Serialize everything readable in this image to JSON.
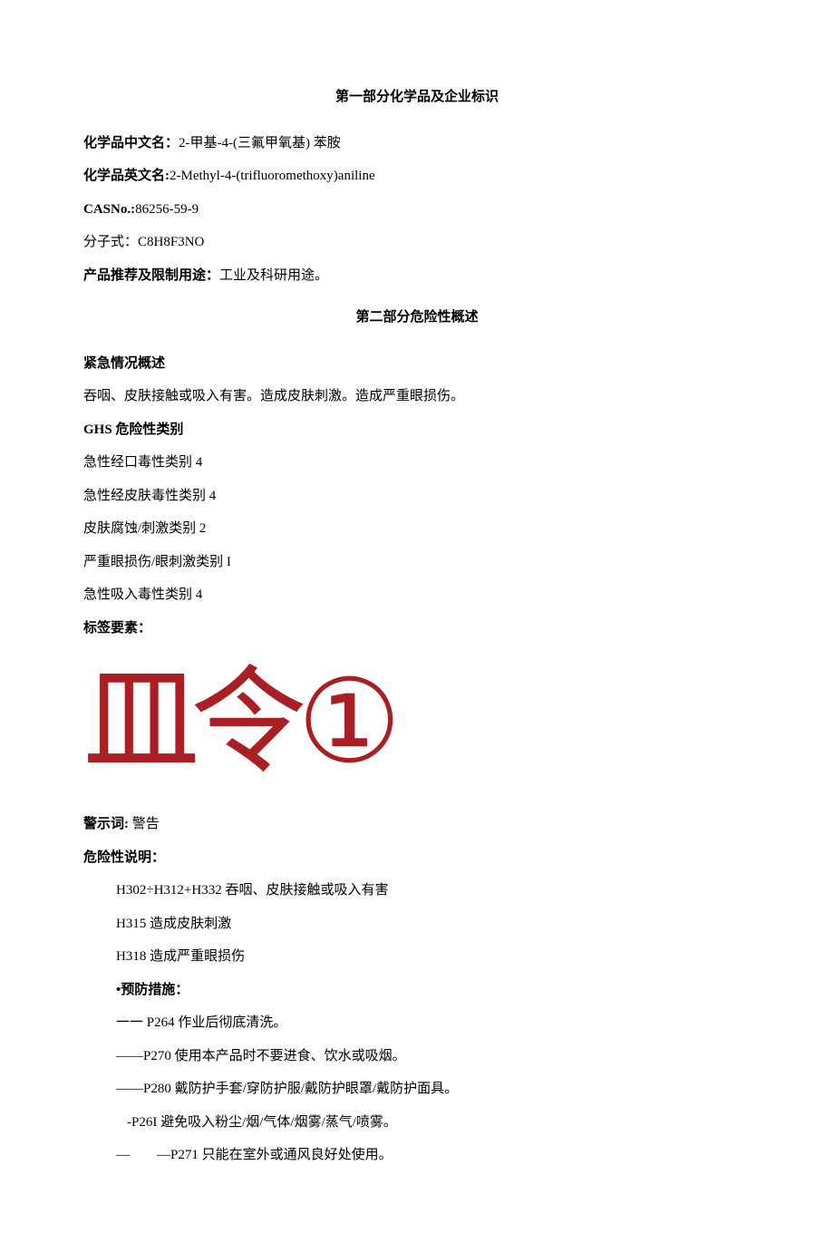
{
  "doc": {
    "text_color": "#000000",
    "bg_color": "#ffffff",
    "accent_color": "#aa1f24",
    "base_fontsize": 15
  },
  "section1": {
    "title": "第一部分化学品及企业标识",
    "name_cn_label": "化学品中文名：",
    "name_cn": "2-甲基-4-(三氟甲氧基) 苯胺",
    "name_en_label": "化学品英文名:",
    "name_en": "2-Methyl-4-(trifluoromethoxy)aniline",
    "cas_label": "CASNo.:",
    "cas": "86256-59-9",
    "formula_label": "分子式：",
    "formula": "C8H8F3NO",
    "use_label": "产品推荐及限制用途：",
    "use": "工业及科研用途。"
  },
  "section2": {
    "title": "第二部分危险性概述",
    "emergency_label": "紧急情况概述",
    "emergency_text": "吞咽、皮肤接触或吸入有害。造成皮肤刺激。造成严重眼损伤。",
    "ghs_cat_label": "GHS 危险性类别",
    "ghs_categories": [
      "急性经口毒性类别 4",
      "急性经皮肤毒性类别 4",
      "皮肤腐蚀/刺激类别 2",
      "严重眼损伤/眼刺激类别 I",
      "急性吸入毒性类别 4"
    ],
    "label_elements": "标签要素：",
    "pictogram_glyphs": [
      "皿",
      "令",
      "①"
    ],
    "signal_label": "警示词:",
    "signal_word": "警告",
    "hazard_label": "危险性说明：",
    "hazard_statements": [
      "H302÷H312+H332 吞咽、皮肤接触或吸入有害",
      "H315 造成皮肤刺激",
      "H318 造成严重眼损伤"
    ],
    "prevention_label": "•预防措施：",
    "prevention_lines": [
      "一一 P264 作业后彻底清洗。",
      "——P270 使用本产品时不要进食、饮水或吸烟。",
      "——P280 戴防护手套/穿防护服/戴防护眼罩/戴防护面具。",
      "-P26I 避免吸入粉尘/烟/气体/烟雾/蒸气/喷雾。",
      "—  —P271 只能在室外或通风良好处使用。"
    ]
  }
}
